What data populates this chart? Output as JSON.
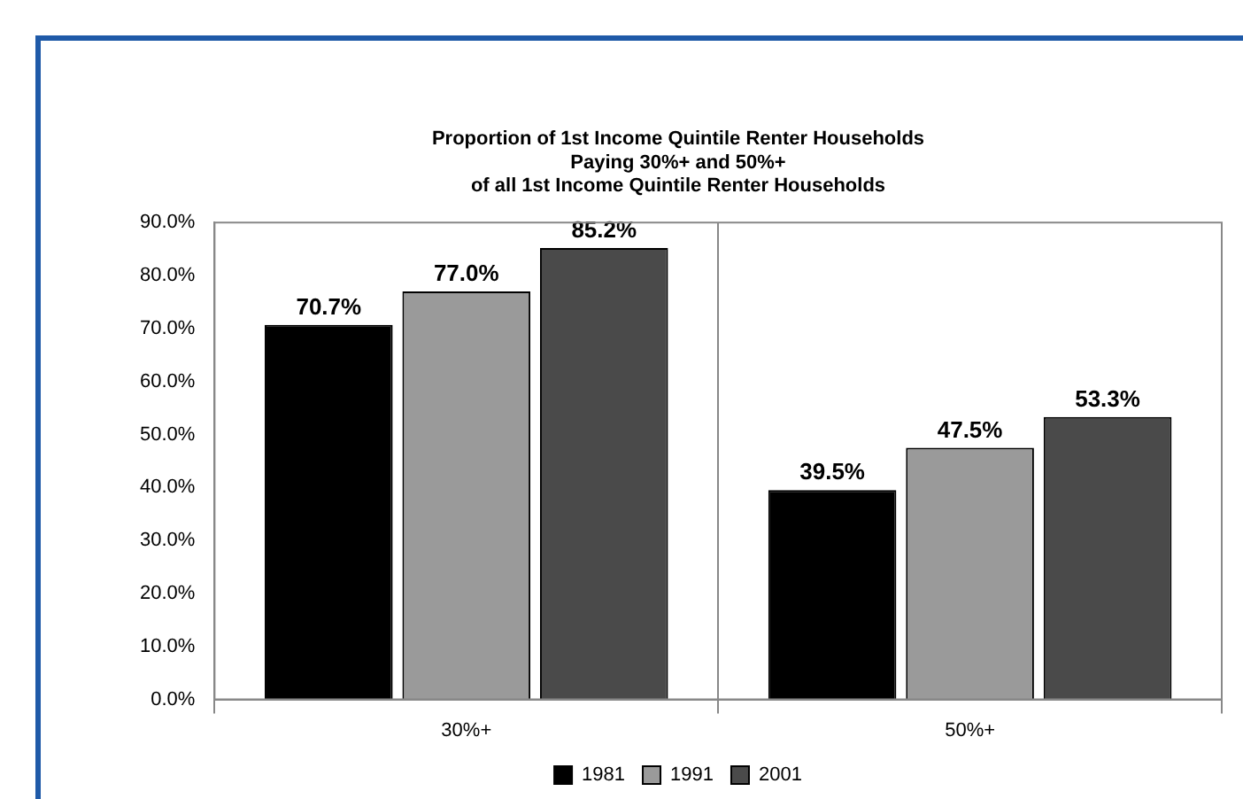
{
  "chart_data": {
    "type": "bar",
    "title": [
      "Proportion of 1st Income Quintile Renter Households",
      "Paying 30%+ and 50%+",
      "of all 1st Income Quintile Renter Households"
    ],
    "categories": [
      "30%+",
      "50%+"
    ],
    "series": [
      {
        "name": "1981",
        "color": "#000000",
        "values": [
          70.7,
          39.5
        ],
        "value_labels": [
          "70.7%",
          "39.5%"
        ]
      },
      {
        "name": "1991",
        "color": "#9a9a9a",
        "values": [
          77.0,
          47.5
        ],
        "value_labels": [
          "77.0%",
          "47.5%"
        ]
      },
      {
        "name": "2001",
        "color": "#4a4a4a",
        "values": [
          85.2,
          53.3
        ],
        "value_labels": [
          "85.2%",
          "53.3%"
        ]
      }
    ],
    "ylim": [
      0,
      90
    ],
    "yticks": [
      {
        "value": 0,
        "label": "0.0%"
      },
      {
        "value": 10,
        "label": "10.0%"
      },
      {
        "value": 20,
        "label": "20.0%"
      },
      {
        "value": 30,
        "label": "30.0%"
      },
      {
        "value": 40,
        "label": "40.0%"
      },
      {
        "value": 50,
        "label": "50.0%"
      },
      {
        "value": 60,
        "label": "60.0%"
      },
      {
        "value": 70,
        "label": "70.0%"
      },
      {
        "value": 80,
        "label": "80.0%"
      },
      {
        "value": 90,
        "label": "90.0%"
      }
    ],
    "grid": "x",
    "legend": "bottom"
  }
}
